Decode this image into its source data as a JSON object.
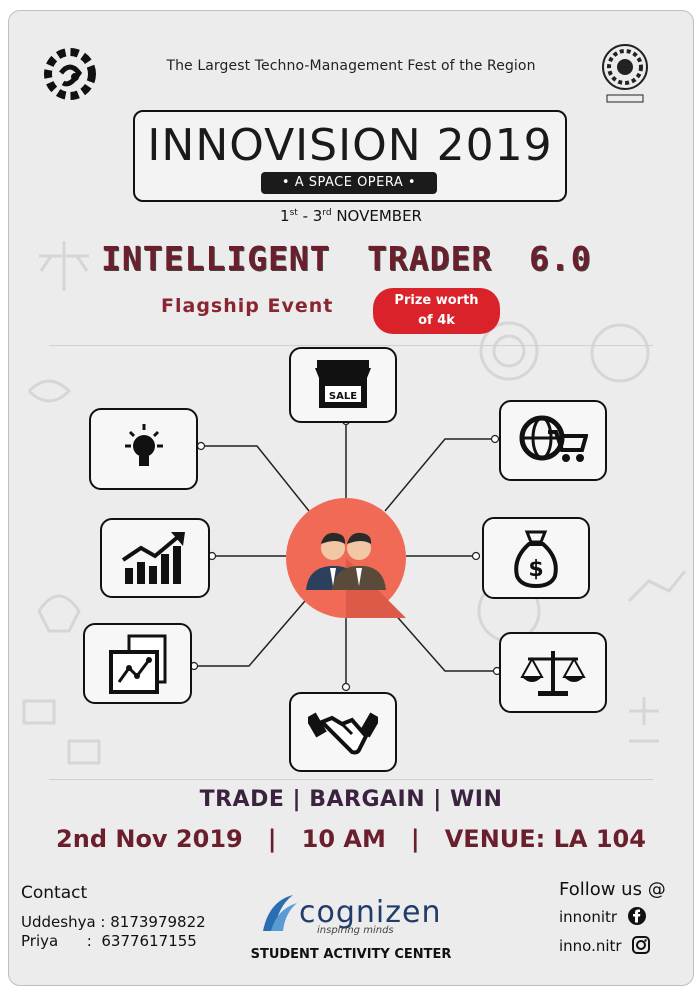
{
  "header": {
    "tagline": "The Largest Techno-Management Fest of the Region"
  },
  "title": {
    "main": "INNOVISION 2019",
    "sub": "• A SPACE OPERA •"
  },
  "dates": {
    "start_num": "1",
    "start_sup": "st",
    "sep": " - ",
    "end_num": "3",
    "end_sup": "rd",
    "month": " NOVEMBER"
  },
  "event": {
    "word1": "INTELLIGENT",
    "word2": "TRADER",
    "version": "6.0",
    "flagship": "Flagship Event",
    "prize_line1": "Prize worth",
    "prize_line2": "of 4k"
  },
  "diagram": {
    "nodes": [
      {
        "name": "sale-store-icon",
        "label": "SALE"
      },
      {
        "name": "lightbulb-icon"
      },
      {
        "name": "globe-cart-icon"
      },
      {
        "name": "growth-chart-icon"
      },
      {
        "name": "money-bag-icon"
      },
      {
        "name": "analytics-report-icon"
      },
      {
        "name": "balance-scale-icon"
      },
      {
        "name": "handshake-icon"
      }
    ]
  },
  "slogan": "TRADE | BARGAIN | WIN",
  "details": "2nd Nov 2019   |   10 AM   |   VENUE: LA 104",
  "contact": {
    "heading": "Contact",
    "line1": "Uddeshya : 8173979822",
    "line2": "Priya      :  6377617155"
  },
  "organizer": {
    "name": "cognizen",
    "tagline": "inspiring minds",
    "center": "STUDENT ACTIVITY CENTER"
  },
  "social": {
    "heading": "Follow us @",
    "facebook": "innonitr",
    "instagram": "inno.nitr"
  },
  "colors": {
    "accent_red": "#d9222a",
    "title_maroon": "#6b1f2c",
    "center_circle": "#f06a55"
  }
}
